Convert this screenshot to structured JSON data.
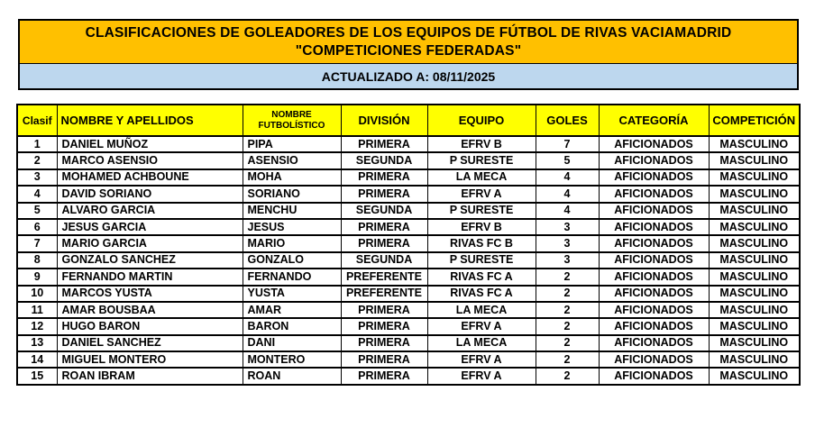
{
  "header": {
    "title_line1": "CLASIFICACIONES DE GOLEADORES DE LOS EQUIPOS DE FÚTBOL DE RIVAS VACIAMADRID",
    "title_line2": "\"COMPETICIONES FEDERADAS\"",
    "updated": "ACTUALIZADO A: 08/11/2025"
  },
  "colors": {
    "banner_gold": "#FFC000",
    "updated_blue": "#BDD7EE",
    "table_header_yellow": "#FFFF00",
    "border_black": "#000000"
  },
  "table": {
    "columns": [
      "Clasif",
      "NOMBRE Y APELLIDOS",
      "NOMBRE FUTBOLÍSTICO",
      "DIVISIÓN",
      "EQUIPO",
      "GOLES",
      "CATEGORÍA",
      "COMPETICIÓN"
    ],
    "rows": [
      [
        "1",
        "DANIEL MUÑOZ",
        "PIPA",
        "PRIMERA",
        "EFRV B",
        "7",
        "AFICIONADOS",
        "MASCULINO"
      ],
      [
        "2",
        "MARCO ASENSIO",
        "ASENSIO",
        "SEGUNDA",
        "P SURESTE",
        "5",
        "AFICIONADOS",
        "MASCULINO"
      ],
      [
        "3",
        "MOHAMED ACHBOUNE",
        "MOHA",
        "PRIMERA",
        "LA MECA",
        "4",
        "AFICIONADOS",
        "MASCULINO"
      ],
      [
        "4",
        "DAVID SORIANO",
        "SORIANO",
        "PRIMERA",
        "EFRV A",
        "4",
        "AFICIONADOS",
        "MASCULINO"
      ],
      [
        "5",
        "ALVARO GARCIA",
        "MENCHU",
        "SEGUNDA",
        "P SURESTE",
        "4",
        "AFICIONADOS",
        "MASCULINO"
      ],
      [
        "6",
        "JESUS GARCIA",
        "JESUS",
        "PRIMERA",
        "EFRV B",
        "3",
        "AFICIONADOS",
        "MASCULINO"
      ],
      [
        "7",
        "MARIO GARCIA",
        "MARIO",
        "PRIMERA",
        "RIVAS FC B",
        "3",
        "AFICIONADOS",
        "MASCULINO"
      ],
      [
        "8",
        "GONZALO SANCHEZ",
        "GONZALO",
        "SEGUNDA",
        "P SURESTE",
        "3",
        "AFICIONADOS",
        "MASCULINO"
      ],
      [
        "9",
        "FERNANDO MARTIN",
        "FERNANDO",
        "PREFERENTE",
        "RIVAS FC A",
        "2",
        "AFICIONADOS",
        "MASCULINO"
      ],
      [
        "10",
        "MARCOS YUSTA",
        "YUSTA",
        "PREFERENTE",
        "RIVAS FC A",
        "2",
        "AFICIONADOS",
        "MASCULINO"
      ],
      [
        "11",
        "AMAR BOUSBAA",
        "AMAR",
        "PRIMERA",
        "LA MECA",
        "2",
        "AFICIONADOS",
        "MASCULINO"
      ],
      [
        "12",
        "HUGO BARON",
        "BARON",
        "PRIMERA",
        "EFRV A",
        "2",
        "AFICIONADOS",
        "MASCULINO"
      ],
      [
        "13",
        "DANIEL SANCHEZ",
        "DANI",
        "PRIMERA",
        "LA MECA",
        "2",
        "AFICIONADOS",
        "MASCULINO"
      ],
      [
        "14",
        "MIGUEL MONTERO",
        "MONTERO",
        "PRIMERA",
        "EFRV A",
        "2",
        "AFICIONADOS",
        "MASCULINO"
      ],
      [
        "15",
        "ROAN IBRAM",
        "ROAN",
        "PRIMERA",
        "EFRV A",
        "2",
        "AFICIONADOS",
        "MASCULINO"
      ]
    ]
  }
}
